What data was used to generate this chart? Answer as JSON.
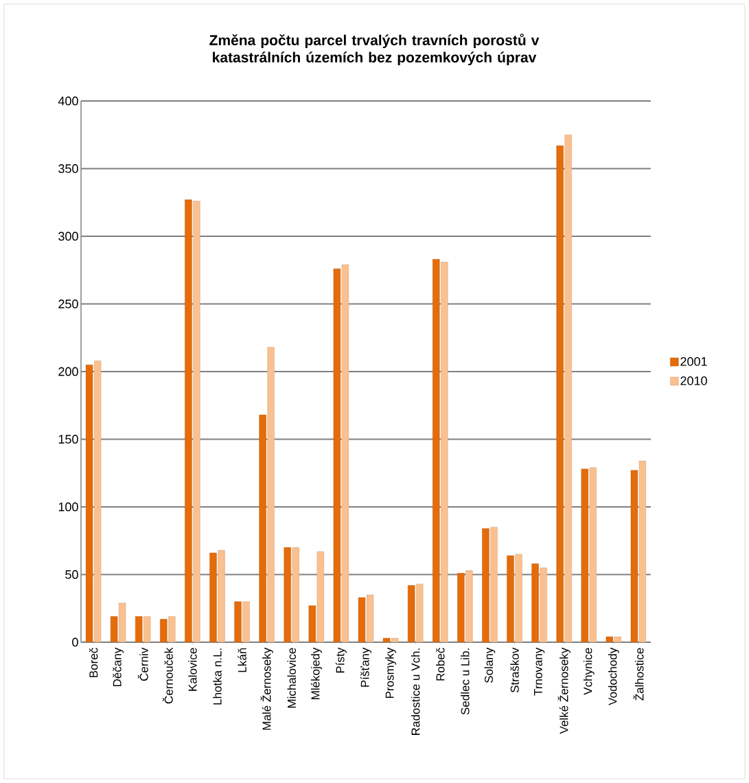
{
  "chart_data": {
    "type": "bar",
    "title": "Změna počtu parcel trvalých travních porostů v katastrálních územích bez pozemkových úprav",
    "categories": [
      "Boreč",
      "Děčany",
      "Černiv",
      "Černouček",
      "Kalovice",
      "Lhotka n.L.",
      "Lkáň",
      "Malé Žernoseky",
      "Michalovice",
      "Mlékojedy",
      "Písty",
      "Píšťany",
      "Prosmyky",
      "Radostice u Vch.",
      "Robeč",
      "Sedlec u Lib.",
      "Solany",
      "Straškov",
      "Trnovany",
      "Velké Žernoseky",
      "Vchynice",
      "Vodochody",
      "Žalhostice"
    ],
    "series": [
      {
        "name": "2001",
        "color": "#e46c0a",
        "values": [
          205,
          19,
          19,
          17,
          327,
          66,
          30,
          168,
          70,
          27,
          276,
          33,
          3,
          42,
          283,
          51,
          84,
          64,
          58,
          367,
          128,
          4,
          127
        ]
      },
      {
        "name": "2010",
        "color": "#fac090",
        "values": [
          208,
          29,
          19,
          19,
          326,
          68,
          30,
          218,
          70,
          67,
          279,
          35,
          3,
          43,
          281,
          53,
          85,
          65,
          55,
          375,
          129,
          4,
          134
        ]
      }
    ],
    "ylim": [
      0,
      400
    ],
    "yticks": [
      0,
      50,
      100,
      150,
      200,
      250,
      300,
      350,
      400
    ],
    "grid": "y",
    "legend": "right"
  }
}
